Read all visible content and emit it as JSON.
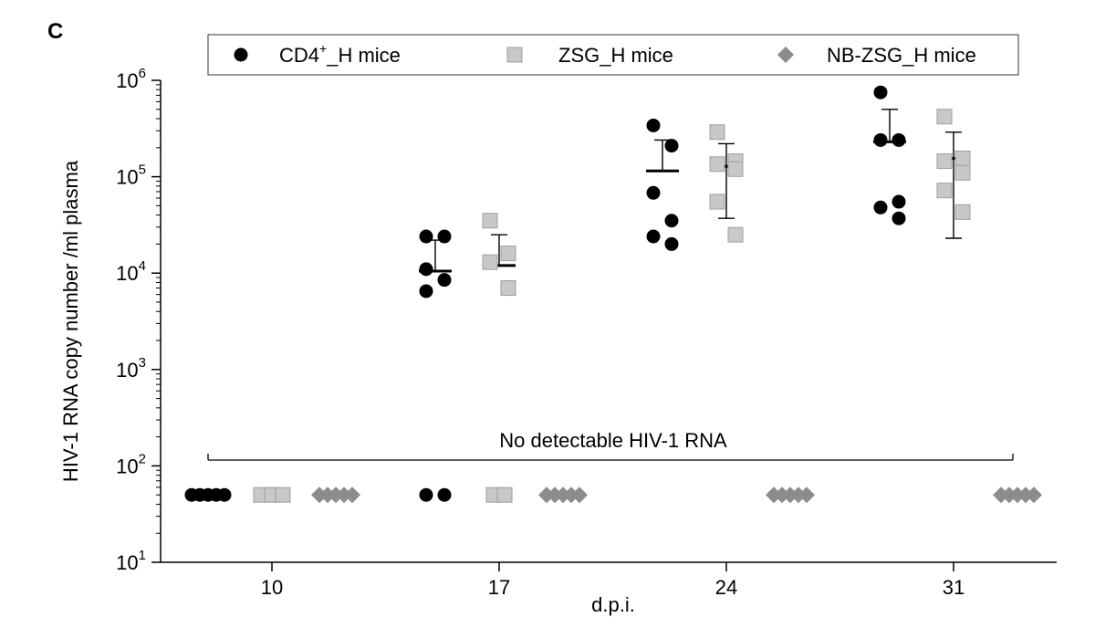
{
  "panel_label": "C",
  "chart_data": {
    "type": "scatter",
    "title": "",
    "xlabel": "d.p.i.",
    "ylabel": "HIV-1 RNA copy number /ml plasma",
    "yscale": "log",
    "ylim": [
      10,
      1000000
    ],
    "y_ticks": [
      {
        "base": "10",
        "exp": "1"
      },
      {
        "base": "10",
        "exp": "2"
      },
      {
        "base": "10",
        "exp": "3"
      },
      {
        "base": "10",
        "exp": "4"
      },
      {
        "base": "10",
        "exp": "5"
      },
      {
        "base": "10",
        "exp": "6"
      }
    ],
    "categories": [
      "10",
      "17",
      "24",
      "31"
    ],
    "annotation": "No detectable HIV-1 RNA",
    "legend_position": "top",
    "series": [
      {
        "name_main": "CD4",
        "name_sup": "+",
        "name_rest": "_H mice",
        "marker": "circle",
        "color": "#000000",
        "points": [
          {
            "x": "10",
            "detected": [],
            "undetectable_count": 5
          },
          {
            "x": "17",
            "detected": [
              24000,
              24000,
              11000,
              8500,
              6500
            ],
            "undetectable_count": 2,
            "mean": 10500,
            "sd_upper": 22000
          },
          {
            "x": "24",
            "detected": [
              340000,
              210000,
              68000,
              35000,
              24000,
              20000
            ],
            "mean": 115000,
            "sd_upper": 240000,
            "undetectable_count": 0
          },
          {
            "x": "31",
            "detected": [
              750000,
              240000,
              240000,
              55000,
              48000,
              37000
            ],
            "mean": 230000,
            "sd_upper": 500000,
            "undetectable_count": 0
          }
        ]
      },
      {
        "name_main": "ZSG",
        "name_sup": "",
        "name_rest": "_H mice",
        "marker": "square",
        "color": "#c8c8c8",
        "points": [
          {
            "x": "10",
            "detected": [],
            "undetectable_count": 3
          },
          {
            "x": "17",
            "detected": [
              35000,
              16000,
              13000,
              7000
            ],
            "undetectable_count": 2,
            "mean": 12000,
            "sd_upper": 25000
          },
          {
            "x": "24",
            "detected": [
              290000,
              145000,
              135000,
              120000,
              55000,
              25000
            ],
            "mean": 128000,
            "sd_upper": 220000,
            "sd_lower": 37000,
            "undetectable_count": 0
          },
          {
            "x": "31",
            "detected": [
              420000,
              155000,
              145000,
              110000,
              72000,
              43000
            ],
            "mean": 155000,
            "sd_upper": 290000,
            "sd_lower": 23000,
            "undetectable_count": 0
          }
        ]
      },
      {
        "name_main": "NB-ZSG",
        "name_sup": "",
        "name_rest": "_H mice",
        "marker": "diamond",
        "color": "#8c8c8c",
        "points": [
          {
            "x": "10",
            "detected": [],
            "undetectable_count": 5
          },
          {
            "x": "17",
            "detected": [],
            "undetectable_count": 5
          },
          {
            "x": "24",
            "detected": [],
            "undetectable_count": 5
          },
          {
            "x": "31",
            "detected": [],
            "undetectable_count": 5
          }
        ]
      }
    ]
  }
}
